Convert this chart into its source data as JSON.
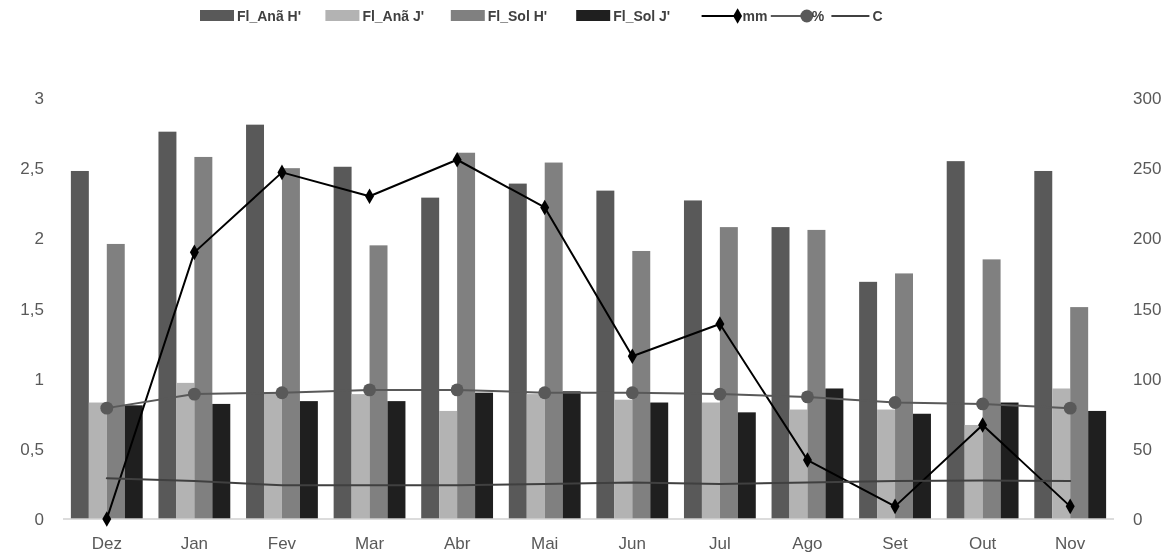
{
  "chart_data": {
    "type": "bar",
    "categories": [
      "Dez",
      "Jan",
      "Fev",
      "Mar",
      "Abr",
      "Mai",
      "Jun",
      "Jul",
      "Ago",
      "Set",
      "Out",
      "Nov"
    ],
    "series": [
      {
        "name": "Fl_Anã H'",
        "color": "#595959",
        "values": [
          2.48,
          2.76,
          2.81,
          2.51,
          2.29,
          2.39,
          2.34,
          2.27,
          2.08,
          1.69,
          2.55,
          2.48
        ]
      },
      {
        "name": "Fl_Anã J'",
        "color": "#b3b3b3",
        "values": [
          0.83,
          0.97,
          0.9,
          0.89,
          0.77,
          0.89,
          0.85,
          0.83,
          0.78,
          0.78,
          0.67,
          0.93
        ]
      },
      {
        "name": "Fl_Sol H'",
        "color": "#808080",
        "values": [
          1.96,
          2.58,
          2.5,
          1.95,
          2.61,
          2.54,
          1.91,
          2.08,
          2.06,
          1.75,
          1.85,
          1.51
        ]
      },
      {
        "name": "Fl_Sol J'",
        "color": "#1f1f1f",
        "values": [
          0.81,
          0.82,
          0.84,
          0.84,
          0.9,
          0.91,
          0.83,
          0.76,
          0.93,
          0.75,
          0.83,
          0.77
        ]
      },
      {
        "name": "mm",
        "type": "line",
        "axis": "y2",
        "marker": "diamond",
        "color": "#000000",
        "values": [
          0,
          190,
          247,
          230,
          256,
          222,
          116,
          139,
          42,
          9,
          67,
          9
        ]
      },
      {
        "name": "%",
        "type": "line",
        "axis": "y2",
        "marker": "circle",
        "color": "#595959",
        "values": [
          79,
          89,
          90,
          92,
          92,
          90,
          90,
          89,
          87,
          83,
          82,
          79
        ]
      },
      {
        "name": "C",
        "type": "line",
        "axis": "y2",
        "marker": "none",
        "color": "#404040",
        "values": [
          29,
          27,
          24,
          24,
          24,
          25,
          26,
          25,
          26,
          27,
          27.5,
          27
        ]
      }
    ],
    "ylim": [
      0,
      3
    ],
    "yticks": [
      0,
      {
        "value": 0.5,
        "label": "0,5"
      },
      1,
      {
        "value": 1.5,
        "label": "1,5"
      },
      2,
      {
        "value": 2.5,
        "label": "2,5"
      },
      3
    ],
    "y2lim": [
      0,
      300
    ],
    "y2ticks": [
      0,
      50,
      100,
      150,
      200,
      250,
      300
    ],
    "grid": false,
    "legend": "top"
  }
}
